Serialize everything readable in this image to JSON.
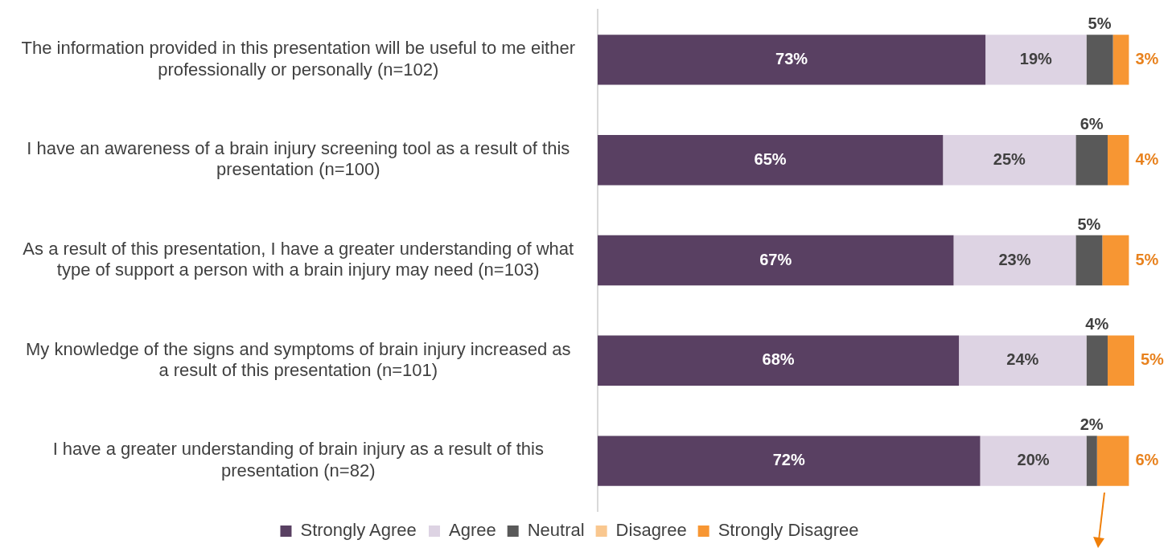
{
  "chart_data": {
    "type": "bar",
    "orientation": "horizontal",
    "stacked": true,
    "legend": "bottom",
    "tick_labels": "y",
    "categories": [
      "The information provided in this presentation will be useful to me either professionally or personally (n=102)",
      "I have an awareness of a brain injury screening tool as a result of this presentation (n=100)",
      "As a result of this presentation, I have a greater understanding of what type of support a person with a brain injury may need (n=103)",
      "My knowledge of the signs and symptoms of brain injury increased as a result of this presentation (n=101)",
      "I have a greater understanding of brain injury as a result of this presentation (n=82)"
    ],
    "series": [
      {
        "name": "Strongly Agree",
        "color": "#594062",
        "values": [
          73,
          65,
          67,
          68,
          72
        ],
        "value_labels": [
          "73%",
          "65%",
          "67%",
          "68%",
          "72%"
        ]
      },
      {
        "name": "Agree",
        "color": "#ddd3e3",
        "values": [
          19,
          25,
          23,
          24,
          20
        ],
        "value_labels": [
          "19%",
          "25%",
          "23%",
          "24%",
          "20%"
        ]
      },
      {
        "name": "Neutral",
        "color": "#595959",
        "values": [
          5,
          6,
          5,
          4,
          2
        ],
        "value_labels": [
          "5%",
          "6%",
          "5%",
          "4%",
          "2%"
        ]
      },
      {
        "name": "Disagree",
        "color": "#f9c78f",
        "values": [
          0,
          0,
          0,
          0,
          0
        ]
      },
      {
        "name": "Strongly Disagree",
        "color": "#f79633",
        "values": [
          3,
          4,
          5,
          5,
          6
        ],
        "value_labels": [
          "3%",
          "4%",
          "5%",
          "5%",
          "6%"
        ]
      }
    ]
  }
}
